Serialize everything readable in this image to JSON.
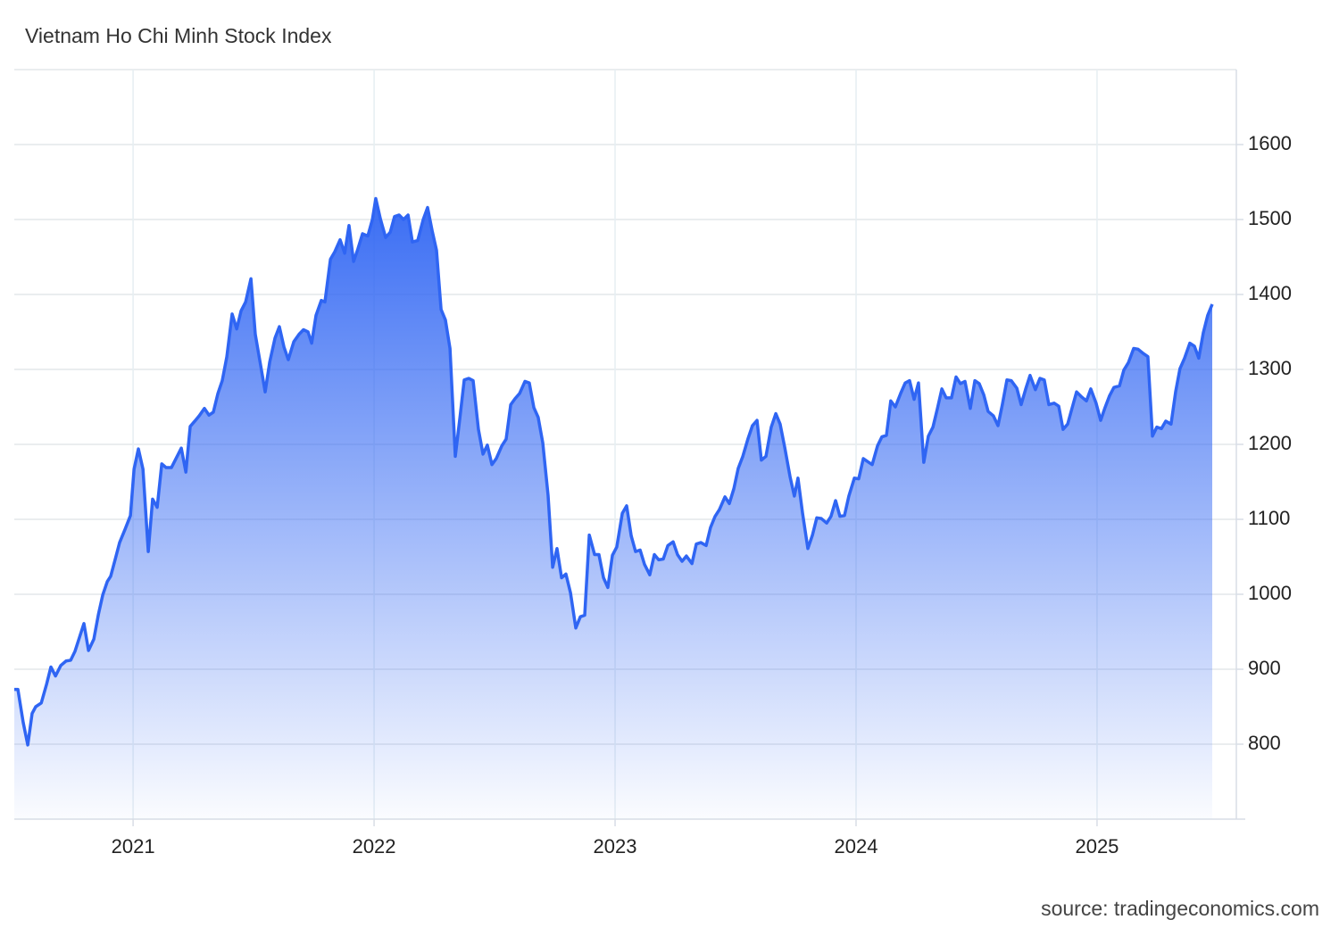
{
  "chart_data": {
    "type": "area",
    "title": "Vietnam Ho Chi Minh Stock Index",
    "source": "source: tradingeconomics.com",
    "color": "#2f65f3",
    "xlim": [
      2020.507,
      2025.578
    ],
    "xticks": [
      2021,
      2022,
      2023,
      2024,
      2025
    ],
    "ylim": [
      700,
      1700
    ],
    "yticks": [
      800,
      900,
      1000,
      1100,
      1200,
      1300,
      1400,
      1500,
      1600
    ],
    "grid": true,
    "x": [
      2020.507,
      2020.522,
      2020.544,
      2020.563,
      2020.581,
      2020.596,
      2020.619,
      2020.641,
      2020.659,
      2020.678,
      2020.7,
      2020.722,
      2020.741,
      2020.759,
      2020.778,
      2020.796,
      2020.815,
      2020.837,
      2020.856,
      2020.874,
      2020.893,
      2020.907,
      2020.926,
      2020.944,
      2020.967,
      2020.989,
      2021.004,
      2021.022,
      2021.041,
      2021.063,
      2021.081,
      2021.1,
      2021.119,
      2021.137,
      2021.159,
      2021.178,
      2021.2,
      2021.219,
      2021.237,
      2021.256,
      2021.274,
      2021.296,
      2021.315,
      2021.333,
      2021.352,
      2021.37,
      2021.389,
      2021.411,
      2021.43,
      2021.448,
      2021.467,
      2021.489,
      2021.507,
      2021.53,
      2021.548,
      2021.567,
      2021.589,
      2021.607,
      2021.626,
      2021.644,
      2021.667,
      2021.689,
      2021.707,
      2021.726,
      2021.741,
      2021.759,
      2021.781,
      2021.796,
      2021.819,
      2021.837,
      2021.859,
      2021.878,
      2021.896,
      2021.915,
      2021.933,
      2021.952,
      2021.974,
      2021.993,
      2022.007,
      2022.026,
      2022.048,
      2022.067,
      2022.085,
      2022.104,
      2022.122,
      2022.141,
      2022.159,
      2022.181,
      2022.204,
      2022.222,
      2022.241,
      2022.259,
      2022.278,
      2022.296,
      2022.315,
      2022.337,
      2022.356,
      2022.374,
      2022.393,
      2022.411,
      2022.433,
      2022.452,
      2022.47,
      2022.489,
      2022.507,
      2022.53,
      2022.548,
      2022.567,
      2022.585,
      2022.604,
      2022.626,
      2022.644,
      2022.663,
      2022.681,
      2022.7,
      2022.722,
      2022.741,
      2022.759,
      2022.778,
      2022.796,
      2022.815,
      2022.837,
      2022.856,
      2022.874,
      2022.893,
      2022.915,
      2022.933,
      2022.952,
      2022.97,
      2022.989,
      2023.007,
      2023.03,
      2023.048,
      2023.067,
      2023.085,
      2023.104,
      2023.122,
      2023.144,
      2023.163,
      2023.181,
      2023.2,
      2023.219,
      2023.241,
      2023.259,
      2023.278,
      2023.296,
      2023.319,
      2023.337,
      2023.356,
      2023.378,
      2023.396,
      2023.415,
      2023.433,
      2023.456,
      2023.474,
      2023.493,
      2023.511,
      2023.53,
      2023.552,
      2023.57,
      2023.589,
      2023.607,
      2023.626,
      2023.648,
      2023.667,
      2023.685,
      2023.704,
      2023.726,
      2023.744,
      2023.759,
      2023.778,
      2023.8,
      2023.819,
      2023.837,
      2023.856,
      2023.878,
      2023.896,
      2023.915,
      2023.933,
      2023.952,
      2023.97,
      2023.993,
      2024.011,
      2024.03,
      2024.048,
      2024.067,
      2024.089,
      2024.107,
      2024.126,
      2024.144,
      2024.163,
      2024.185,
      2024.204,
      2024.222,
      2024.241,
      2024.259,
      2024.281,
      2024.3,
      2024.319,
      2024.337,
      2024.356,
      2024.374,
      2024.396,
      2024.415,
      2024.433,
      2024.452,
      2024.474,
      2024.493,
      2024.511,
      2024.53,
      2024.548,
      2024.57,
      2024.589,
      2024.607,
      2024.626,
      2024.644,
      2024.667,
      2024.685,
      2024.704,
      2024.722,
      2024.744,
      2024.763,
      2024.781,
      2024.8,
      2024.822,
      2024.841,
      2024.859,
      2024.878,
      2024.896,
      2024.915,
      2024.937,
      2024.956,
      2024.974,
      2024.996,
      2025.015,
      2025.033,
      2025.052,
      2025.07,
      2025.093,
      2025.111,
      2025.13,
      2025.152,
      2025.17,
      2025.189,
      2025.211,
      2025.23,
      2025.248,
      2025.267,
      2025.285,
      2025.307,
      2025.326,
      2025.344,
      2025.363,
      2025.385,
      2025.404,
      2025.422,
      2025.441,
      2025.459,
      2025.478
    ],
    "values": [
      873,
      873,
      829,
      799,
      841,
      850,
      855,
      880,
      903,
      891,
      905,
      911,
      912,
      924,
      943,
      961,
      925,
      940,
      973,
      999,
      1017,
      1024,
      1047,
      1069,
      1087,
      1105,
      1167,
      1194,
      1167,
      1057,
      1127,
      1116,
      1174,
      1169,
      1169,
      1181,
      1195,
      1163,
      1224,
      1231,
      1238,
      1248,
      1239,
      1243,
      1268,
      1285,
      1317,
      1374,
      1354,
      1378,
      1390,
      1421,
      1347,
      1304,
      1270,
      1310,
      1342,
      1357,
      1330,
      1313,
      1337,
      1347,
      1353,
      1350,
      1335,
      1372,
      1392,
      1390,
      1447,
      1457,
      1473,
      1455,
      1492,
      1444,
      1461,
      1481,
      1478,
      1500,
      1528,
      1501,
      1476,
      1483,
      1504,
      1506,
      1500,
      1506,
      1470,
      1472,
      1500,
      1516,
      1485,
      1459,
      1380,
      1366,
      1328,
      1184,
      1235,
      1286,
      1288,
      1285,
      1220,
      1187,
      1199,
      1173,
      1181,
      1198,
      1207,
      1253,
      1261,
      1268,
      1284,
      1282,
      1249,
      1236,
      1202,
      1132,
      1036,
      1061,
      1022,
      1027,
      1002,
      955,
      970,
      972,
      1079,
      1053,
      1053,
      1022,
      1009,
      1052,
      1063,
      1108,
      1118,
      1078,
      1057,
      1059,
      1040,
      1026,
      1053,
      1046,
      1047,
      1065,
      1070,
      1053,
      1044,
      1051,
      1041,
      1067,
      1069,
      1065,
      1089,
      1104,
      1113,
      1130,
      1121,
      1141,
      1168,
      1184,
      1208,
      1225,
      1232,
      1179,
      1184,
      1223,
      1241,
      1227,
      1196,
      1157,
      1131,
      1155,
      1108,
      1061,
      1079,
      1102,
      1101,
      1095,
      1104,
      1125,
      1104,
      1105,
      1131,
      1155,
      1154,
      1181,
      1177,
      1173,
      1198,
      1210,
      1212,
      1258,
      1250,
      1268,
      1282,
      1285,
      1260,
      1282,
      1176,
      1211,
      1223,
      1247,
      1274,
      1262,
      1262,
      1290,
      1281,
      1284,
      1248,
      1285,
      1281,
      1266,
      1244,
      1238,
      1225,
      1253,
      1286,
      1285,
      1275,
      1253,
      1274,
      1292,
      1273,
      1288,
      1286,
      1253,
      1255,
      1251,
      1220,
      1227,
      1248,
      1270,
      1263,
      1258,
      1274,
      1255,
      1232,
      1249,
      1265,
      1276,
      1278,
      1299,
      1309,
      1328,
      1327,
      1322,
      1317,
      1211,
      1223,
      1221,
      1231,
      1227,
      1270,
      1301,
      1315,
      1335,
      1331,
      1315,
      1349,
      1372,
      1387
    ]
  }
}
